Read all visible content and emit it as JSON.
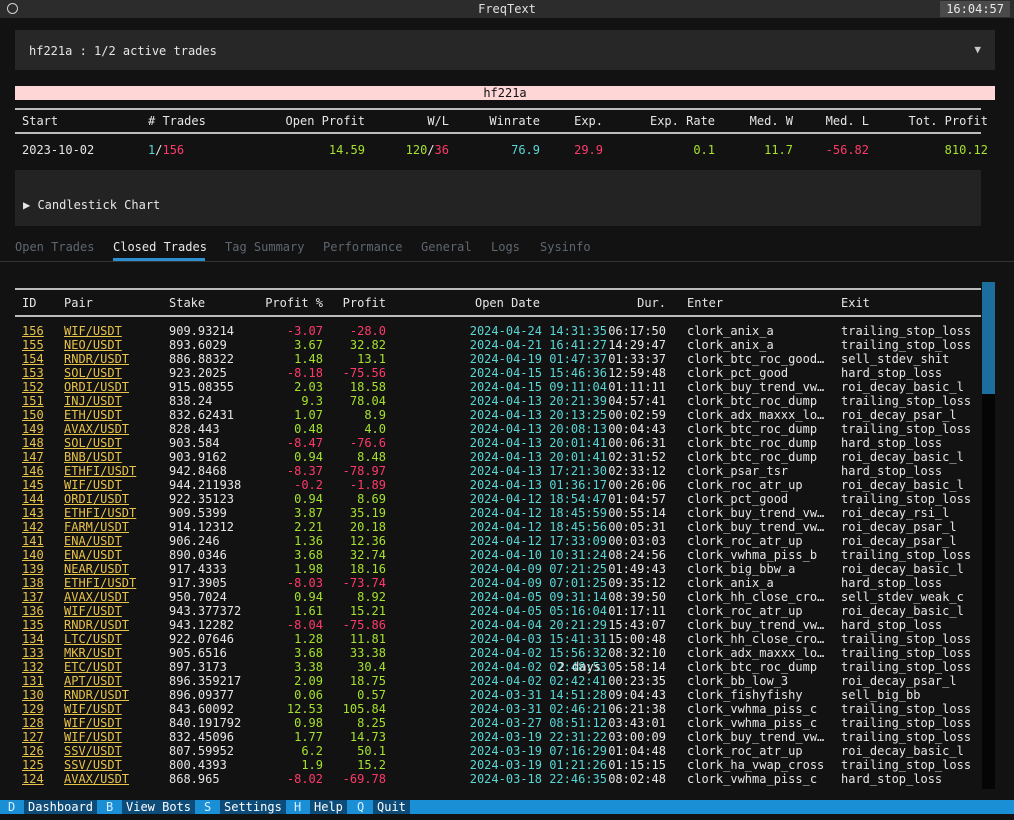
{
  "window": {
    "title": "FreqText",
    "clock": "16:04:57"
  },
  "bot_selector": {
    "value": "hf221a : 1/2 active trades"
  },
  "bot_banner": "hf221a",
  "summary": {
    "headers": [
      "Start",
      "# Trades",
      "Open Profit",
      "W/L",
      "Winrate",
      "Exp.",
      "Exp. Rate",
      "Med. W",
      "Med. L",
      "Tot. Profit"
    ],
    "start": "2023-10-02",
    "trades_open": "1",
    "trades_total": "156",
    "open_profit": "14.59",
    "wins": "120",
    "losses": "36",
    "winrate": "76.9",
    "expectancy": "29.9",
    "exp_rate": "0.1",
    "med_w": "11.7",
    "med_l": "-56.82",
    "tot_profit": "810.12"
  },
  "chart_toggle": {
    "label": "▶ Candlestick Chart"
  },
  "tabs": [
    "Open Trades",
    "Closed Trades",
    "Tag Summary",
    "Performance",
    "General",
    "Logs",
    "Sysinfo"
  ],
  "active_tab": "Closed Trades",
  "trades_table": {
    "headers": [
      "ID",
      "Pair",
      "Stake",
      "Profit %",
      "Profit",
      "Open Date",
      "Dur.",
      "Enter",
      "Exit"
    ],
    "rows": [
      {
        "id": "156",
        "pair": "WIF/USDT",
        "stake": "909.93214",
        "profit_pct": "-3.07",
        "profit": "-28.0",
        "open_date": "2024-04-24 14:31:35",
        "dur": "06:17:50",
        "enter": "clork_anix_a",
        "exit": "trailing_stop_loss"
      },
      {
        "id": "155",
        "pair": "NEO/USDT",
        "stake": "893.6029",
        "profit_pct": "3.67",
        "profit": "32.82",
        "open_date": "2024-04-21 16:41:27",
        "dur": "14:29:47",
        "enter": "clork_anix_a",
        "exit": "trailing_stop_loss"
      },
      {
        "id": "154",
        "pair": "RNDR/USDT",
        "stake": "886.88322",
        "profit_pct": "1.48",
        "profit": "13.1",
        "open_date": "2024-04-19 01:47:37",
        "dur": "01:33:37",
        "enter": "clork_btc_roc_good…",
        "exit": "sell_stdev_shit"
      },
      {
        "id": "153",
        "pair": "SOL/USDT",
        "stake": "923.2025",
        "profit_pct": "-8.18",
        "profit": "-75.56",
        "open_date": "2024-04-15 15:46:36",
        "dur": "12:59:48",
        "enter": "clork_pct_good",
        "exit": "hard_stop_loss"
      },
      {
        "id": "152",
        "pair": "ORDI/USDT",
        "stake": "915.08355",
        "profit_pct": "2.03",
        "profit": "18.58",
        "open_date": "2024-04-15 09:11:04",
        "dur": "01:11:11",
        "enter": "clork_buy_trend_vw…",
        "exit": "roi_decay_basic_l"
      },
      {
        "id": "151",
        "pair": "INJ/USDT",
        "stake": "838.24",
        "profit_pct": "9.3",
        "profit": "78.04",
        "open_date": "2024-04-13 20:21:39",
        "dur": "04:57:41",
        "enter": "clork_btc_roc_dump",
        "exit": "trailing_stop_loss"
      },
      {
        "id": "150",
        "pair": "ETH/USDT",
        "stake": "832.62431",
        "profit_pct": "1.07",
        "profit": "8.9",
        "open_date": "2024-04-13 20:13:25",
        "dur": "00:02:59",
        "enter": "clork_adx_maxxx_lo…",
        "exit": "roi_decay_psar_l"
      },
      {
        "id": "149",
        "pair": "AVAX/USDT",
        "stake": "828.443",
        "profit_pct": "0.48",
        "profit": "4.0",
        "open_date": "2024-04-13 20:08:13",
        "dur": "00:04:43",
        "enter": "clork_btc_roc_dump",
        "exit": "trailing_stop_loss"
      },
      {
        "id": "148",
        "pair": "SOL/USDT",
        "stake": "903.584",
        "profit_pct": "-8.47",
        "profit": "-76.6",
        "open_date": "2024-04-13 20:01:41",
        "dur": "00:06:31",
        "enter": "clork_btc_roc_dump",
        "exit": "hard_stop_loss"
      },
      {
        "id": "147",
        "pair": "BNB/USDT",
        "stake": "903.9162",
        "profit_pct": "0.94",
        "profit": "8.48",
        "open_date": "2024-04-13 20:01:41",
        "dur": "02:31:52",
        "enter": "clork_btc_roc_dump",
        "exit": "roi_decay_basic_l"
      },
      {
        "id": "146",
        "pair": "ETHFI/USDT",
        "stake": "942.8468",
        "profit_pct": "-8.37",
        "profit": "-78.97",
        "open_date": "2024-04-13 17:21:30",
        "dur": "02:33:12",
        "enter": "clork_psar_tsr",
        "exit": "hard_stop_loss"
      },
      {
        "id": "145",
        "pair": "WIF/USDT",
        "stake": "944.211938",
        "profit_pct": "-0.2",
        "profit": "-1.89",
        "open_date": "2024-04-13 01:36:17",
        "dur": "00:26:06",
        "enter": "clork_roc_atr_up",
        "exit": "roi_decay_basic_l"
      },
      {
        "id": "144",
        "pair": "ORDI/USDT",
        "stake": "922.35123",
        "profit_pct": "0.94",
        "profit": "8.69",
        "open_date": "2024-04-12 18:54:47",
        "dur": "01:04:57",
        "enter": "clork_pct_good",
        "exit": "trailing_stop_loss"
      },
      {
        "id": "143",
        "pair": "ETHFI/USDT",
        "stake": "909.5399",
        "profit_pct": "3.87",
        "profit": "35.19",
        "open_date": "2024-04-12 18:45:59",
        "dur": "00:55:14",
        "enter": "clork_buy_trend_vw…",
        "exit": "roi_decay_rsi_l"
      },
      {
        "id": "142",
        "pair": "FARM/USDT",
        "stake": "914.12312",
        "profit_pct": "2.21",
        "profit": "20.18",
        "open_date": "2024-04-12 18:45:56",
        "dur": "00:05:31",
        "enter": "clork_buy_trend_vw…",
        "exit": "roi_decay_psar_l"
      },
      {
        "id": "141",
        "pair": "ENA/USDT",
        "stake": "906.246",
        "profit_pct": "1.36",
        "profit": "12.36",
        "open_date": "2024-04-12 17:33:09",
        "dur": "00:03:03",
        "enter": "clork_roc_atr_up",
        "exit": "roi_decay_psar_l"
      },
      {
        "id": "140",
        "pair": "ENA/USDT",
        "stake": "890.0346",
        "profit_pct": "3.68",
        "profit": "32.74",
        "open_date": "2024-04-10 10:31:24",
        "dur": "08:24:56",
        "enter": "clork_vwhma_piss_b",
        "exit": "trailing_stop_loss"
      },
      {
        "id": "139",
        "pair": "NEAR/USDT",
        "stake": "917.4333",
        "profit_pct": "1.98",
        "profit": "18.16",
        "open_date": "2024-04-09 07:21:25",
        "dur": "01:49:43",
        "enter": "clork_big_bbw_a",
        "exit": "roi_decay_basic_l"
      },
      {
        "id": "138",
        "pair": "ETHFI/USDT",
        "stake": "917.3905",
        "profit_pct": "-8.03",
        "profit": "-73.74",
        "open_date": "2024-04-09 07:01:25",
        "dur": "09:35:12",
        "enter": "clork_anix_a",
        "exit": "hard_stop_loss"
      },
      {
        "id": "137",
        "pair": "AVAX/USDT",
        "stake": "950.7024",
        "profit_pct": "0.94",
        "profit": "8.92",
        "open_date": "2024-04-05 09:31:14",
        "dur": "08:39:50",
        "enter": "clork_hh_close_cro…",
        "exit": "sell_stdev_weak_c"
      },
      {
        "id": "136",
        "pair": "WIF/USDT",
        "stake": "943.377372",
        "profit_pct": "1.61",
        "profit": "15.21",
        "open_date": "2024-04-05 05:16:04",
        "dur": "01:17:11",
        "enter": "clork_roc_atr_up",
        "exit": "roi_decay_basic_l"
      },
      {
        "id": "135",
        "pair": "RNDR/USDT",
        "stake": "943.12282",
        "profit_pct": "-8.04",
        "profit": "-75.86",
        "open_date": "2024-04-04 20:21:29",
        "dur": "15:43:07",
        "enter": "clork_buy_trend_vw…",
        "exit": "hard_stop_loss"
      },
      {
        "id": "134",
        "pair": "LTC/USDT",
        "stake": "922.07646",
        "profit_pct": "1.28",
        "profit": "11.81",
        "open_date": "2024-04-03 15:41:31",
        "dur": "15:00:48",
        "enter": "clork_hh_close_cro…",
        "exit": "trailing_stop_loss"
      },
      {
        "id": "133",
        "pair": "MKR/USDT",
        "stake": "905.6516",
        "profit_pct": "3.68",
        "profit": "33.38",
        "open_date": "2024-04-02 15:56:32",
        "dur": "08:32:10",
        "enter": "clork_adx_maxxx_lo…",
        "exit": "trailing_stop_loss"
      },
      {
        "id": "132",
        "pair": "ETC/USDT",
        "stake": "897.3173",
        "profit_pct": "3.38",
        "profit": "30.4",
        "open_date": "2024-04-02 02:48:53",
        "dur": "2 days 05:58:14",
        "enter": "clork_btc_roc_dump",
        "exit": "trailing_stop_loss"
      },
      {
        "id": "131",
        "pair": "APT/USDT",
        "stake": "896.359217",
        "profit_pct": "2.09",
        "profit": "18.75",
        "open_date": "2024-04-02 02:42:41",
        "dur": "00:23:35",
        "enter": "clork_bb_low_3",
        "exit": "roi_decay_psar_l"
      },
      {
        "id": "130",
        "pair": "RNDR/USDT",
        "stake": "896.09377",
        "profit_pct": "0.06",
        "profit": "0.57",
        "open_date": "2024-03-31 14:51:28",
        "dur": "09:04:43",
        "enter": "clork_fishyfishy",
        "exit": "sell_big_bb"
      },
      {
        "id": "129",
        "pair": "WIF/USDT",
        "stake": "843.60092",
        "profit_pct": "12.53",
        "profit": "105.84",
        "open_date": "2024-03-31 02:46:21",
        "dur": "06:21:38",
        "enter": "clork_vwhma_piss_c",
        "exit": "trailing_stop_loss"
      },
      {
        "id": "128",
        "pair": "WIF/USDT",
        "stake": "840.191792",
        "profit_pct": "0.98",
        "profit": "8.25",
        "open_date": "2024-03-27 08:51:12",
        "dur": "03:43:01",
        "enter": "clork_vwhma_piss_c",
        "exit": "trailing_stop_loss"
      },
      {
        "id": "127",
        "pair": "WIF/USDT",
        "stake": "832.45096",
        "profit_pct": "1.77",
        "profit": "14.73",
        "open_date": "2024-03-19 22:31:22",
        "dur": "03:00:09",
        "enter": "clork_buy_trend_vw…",
        "exit": "trailing_stop_loss"
      },
      {
        "id": "126",
        "pair": "SSV/USDT",
        "stake": "807.59952",
        "profit_pct": "6.2",
        "profit": "50.1",
        "open_date": "2024-03-19 07:16:29",
        "dur": "01:04:48",
        "enter": "clork_roc_atr_up",
        "exit": "roi_decay_basic_l"
      },
      {
        "id": "125",
        "pair": "SSV/USDT",
        "stake": "800.4393",
        "profit_pct": "1.9",
        "profit": "15.2",
        "open_date": "2024-03-19 01:21:26",
        "dur": "01:15:15",
        "enter": "clork_ha_vwap_cross",
        "exit": "trailing_stop_loss"
      },
      {
        "id": "124",
        "pair": "AVAX/USDT",
        "stake": "868.965",
        "profit_pct": "-8.02",
        "profit": "-69.78",
        "open_date": "2024-03-18 22:46:35",
        "dur": "08:02:48",
        "enter": "clork_vwhma_piss_c",
        "exit": "hard_stop_loss"
      }
    ]
  },
  "footer": {
    "items": [
      {
        "key": "D",
        "label": "Dashboard"
      },
      {
        "key": "B",
        "label": "View Bots"
      },
      {
        "key": "S",
        "label": "Settings"
      },
      {
        "key": "H",
        "label": "Help"
      },
      {
        "key": "Q",
        "label": "Quit"
      }
    ]
  },
  "colors": {
    "positive": "#a6e22e",
    "negative": "#ff3a6a",
    "date": "#5ad6d6",
    "link": "#e8c34a",
    "accent": "#1b8fd6"
  }
}
